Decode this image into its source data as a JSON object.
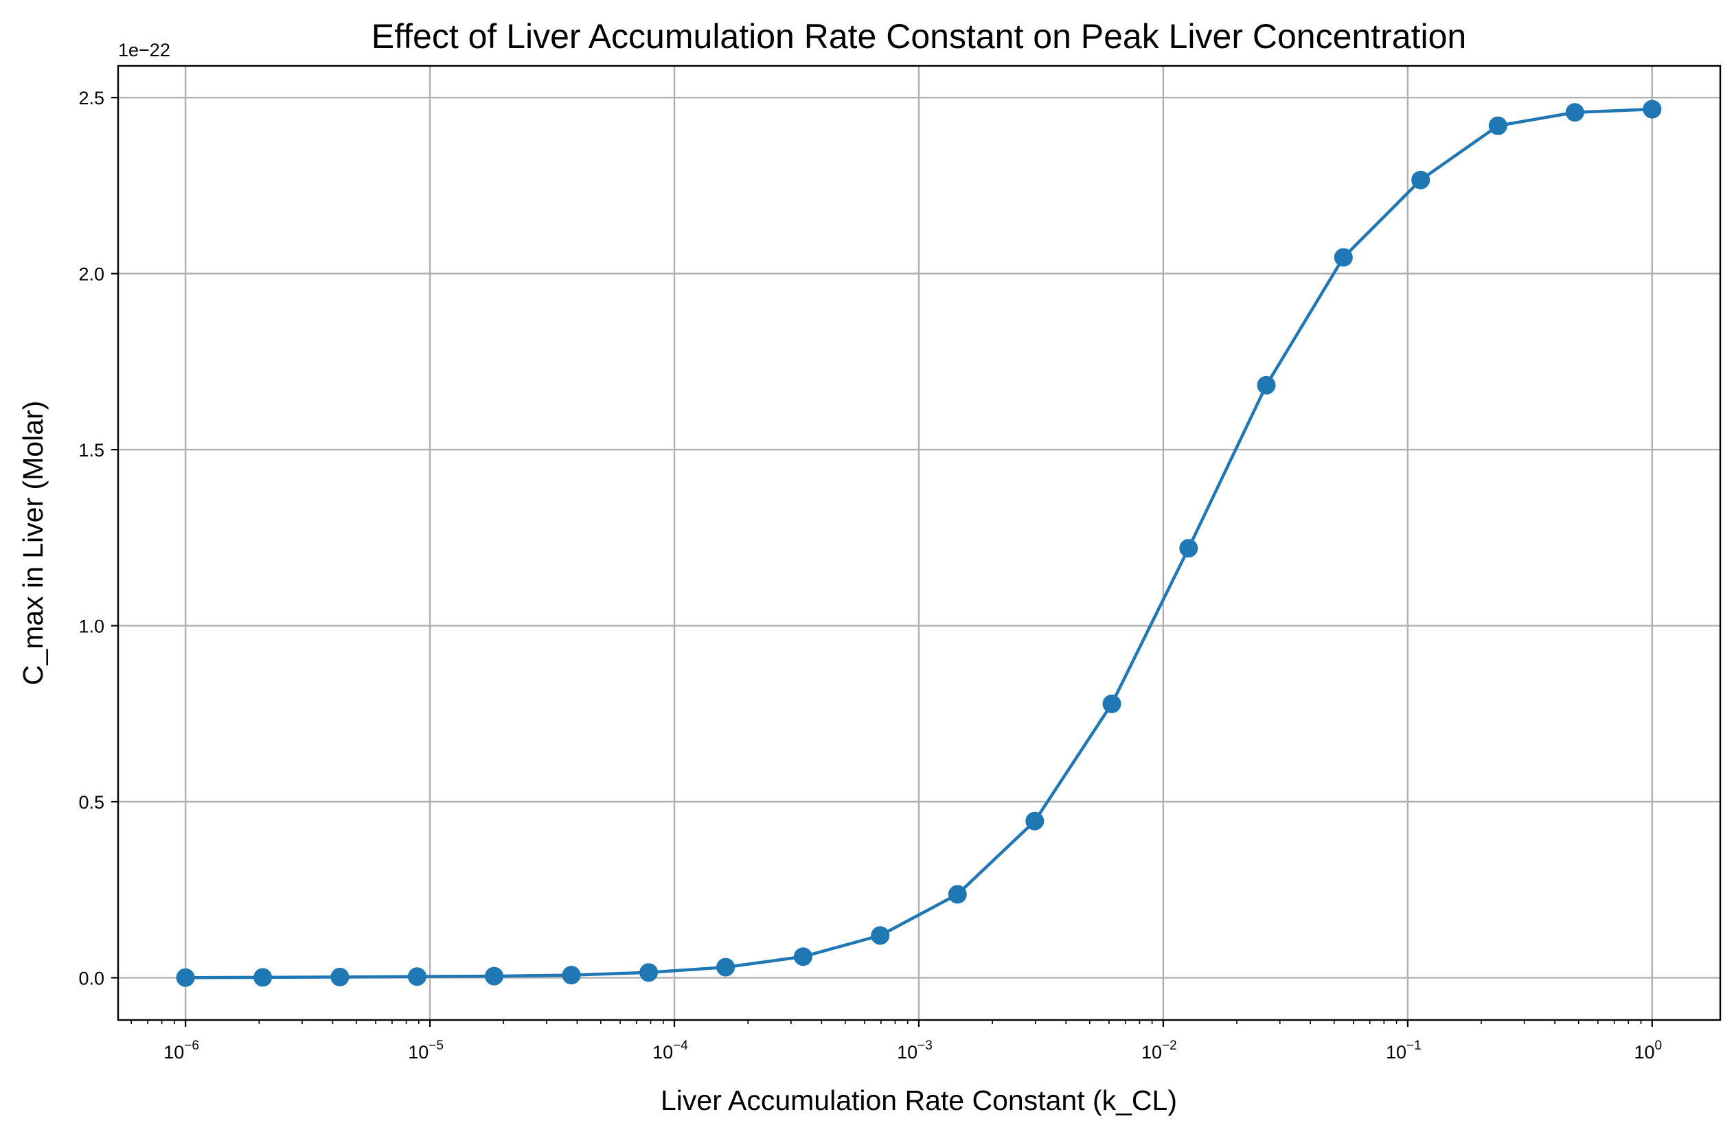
{
  "chart_data": {
    "type": "line",
    "title": "Effect of Liver Accumulation Rate Constant on Peak Liver Concentration",
    "xlabel": "Liver Accumulation Rate Constant (k_CL)",
    "ylabel": "C_max in Liver (Molar)",
    "x_scale": "log",
    "xlim": [
      5.3e-07,
      1.9
    ],
    "ylim": [
      -0.12,
      2.59
    ],
    "y_offset_label": "1e−22",
    "grid": true,
    "x_ticks": [
      {
        "base": "10",
        "exp": "−6",
        "value": 1e-06
      },
      {
        "base": "10",
        "exp": "−5",
        "value": 1e-05
      },
      {
        "base": "10",
        "exp": "−4",
        "value": 0.0001
      },
      {
        "base": "10",
        "exp": "−3",
        "value": 0.001
      },
      {
        "base": "10",
        "exp": "−2",
        "value": 0.01
      },
      {
        "base": "10",
        "exp": "−1",
        "value": 0.1
      },
      {
        "base": "10",
        "exp": "0",
        "value": 1
      }
    ],
    "y_ticks": [
      {
        "label": "0.0",
        "value": 0.0
      },
      {
        "label": "0.5",
        "value": 0.5
      },
      {
        "label": "1.0",
        "value": 1.0
      },
      {
        "label": "1.5",
        "value": 1.5
      },
      {
        "label": "2.0",
        "value": 2.0
      },
      {
        "label": "2.5",
        "value": 2.5
      }
    ],
    "series": [
      {
        "color": "#1f77b4",
        "x": [
          1e-06,
          2.07e-06,
          4.28e-06,
          8.86e-06,
          1.83e-05,
          3.79e-05,
          7.85e-05,
          0.000162,
          0.000336,
          0.000695,
          0.00144,
          0.00298,
          0.00616,
          0.0127,
          0.0264,
          0.0546,
          0.113,
          0.234,
          0.483,
          1.0
        ],
        "y": [
          0.0005,
          0.001,
          0.002,
          0.0035,
          0.0045,
          0.0075,
          0.015,
          0.03,
          0.06,
          0.12,
          0.237,
          0.445,
          0.778,
          1.22,
          1.683,
          2.046,
          2.266,
          2.42,
          2.458,
          2.467
        ]
      }
    ]
  }
}
